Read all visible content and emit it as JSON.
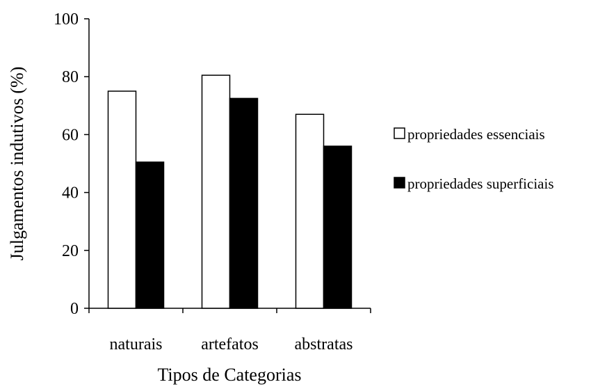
{
  "chart_data": {
    "type": "bar",
    "title": "",
    "xlabel": "Tipos de Categorias",
    "ylabel": "Julgamentos indutivos (%)",
    "ylim": [
      0,
      100
    ],
    "yticks": [
      0,
      20,
      40,
      60,
      80,
      100
    ],
    "grid": false,
    "legend_position": "right",
    "categories": [
      "naturais",
      "artefatos",
      "abstratas"
    ],
    "series": [
      {
        "name": "propriedades essenciais",
        "values": [
          75,
          80.5,
          67
        ],
        "color": "#ffffff"
      },
      {
        "name": "propriedades superficiais",
        "values": [
          50.5,
          72.5,
          56
        ],
        "color": "#000000"
      }
    ]
  }
}
